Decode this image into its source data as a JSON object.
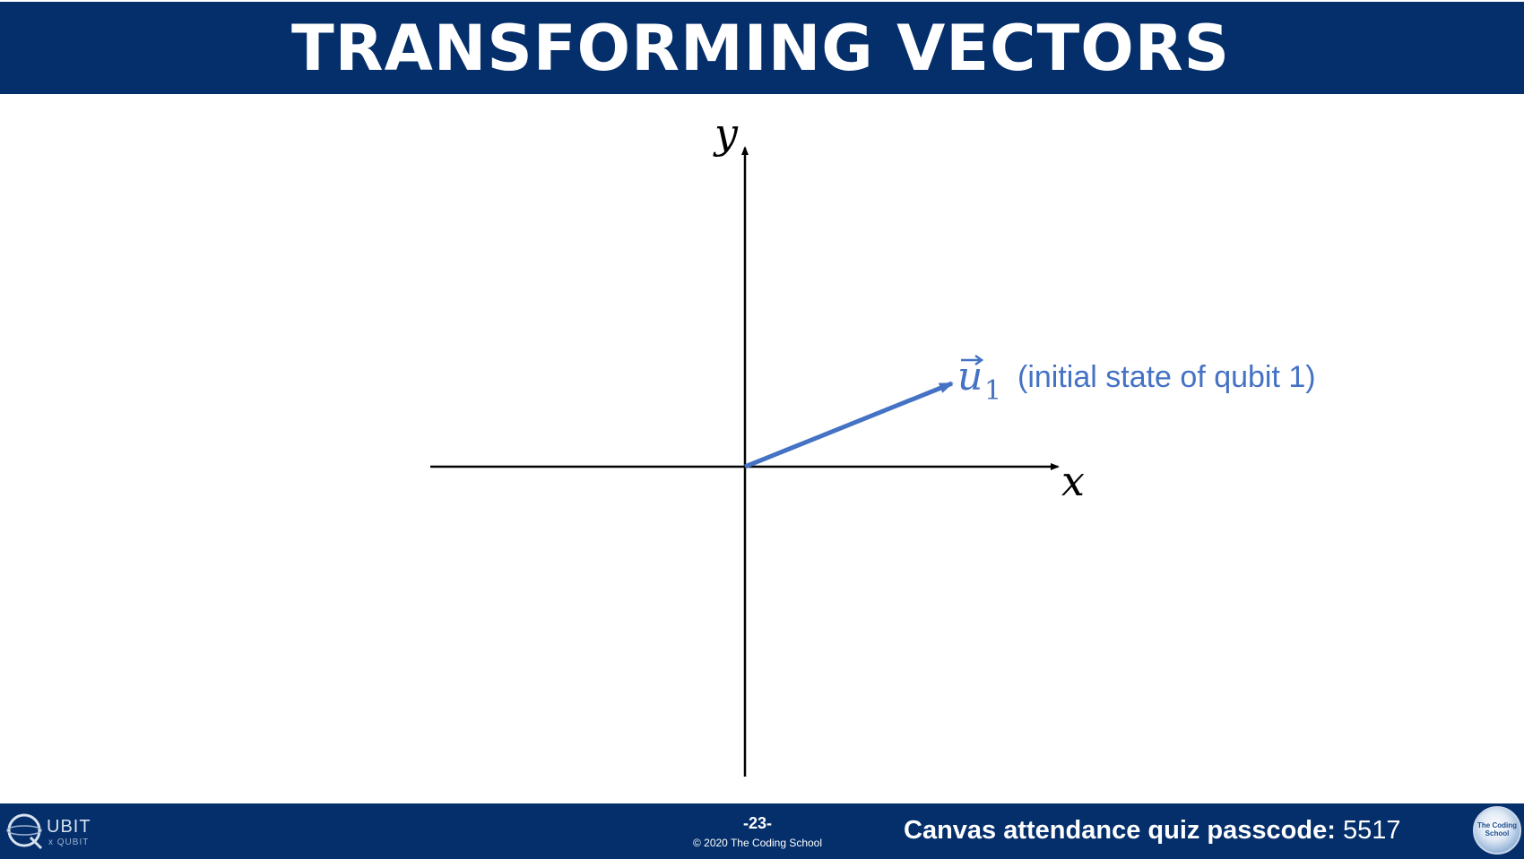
{
  "slide": {
    "title": "TRANSFORMING VECTORS"
  },
  "diagram": {
    "y_axis_label": "y",
    "x_axis_label": "x",
    "vector_symbol": "u",
    "vector_subscript": "1",
    "vector_caption": "(initial state of qubit 1)",
    "vector_color": "#4472c4",
    "axis_color": "#000000"
  },
  "footer": {
    "brand_name": "UBIT",
    "brand_letter": "Q",
    "brand_sub": "x QUBIT",
    "page_number": "-23-",
    "copyright": "© 2020 The Coding School",
    "passcode_label": "Canvas attendance quiz passcode:",
    "passcode_value": "5517",
    "school_logo_text": "The Coding School",
    "background_color": "#042f6b"
  }
}
